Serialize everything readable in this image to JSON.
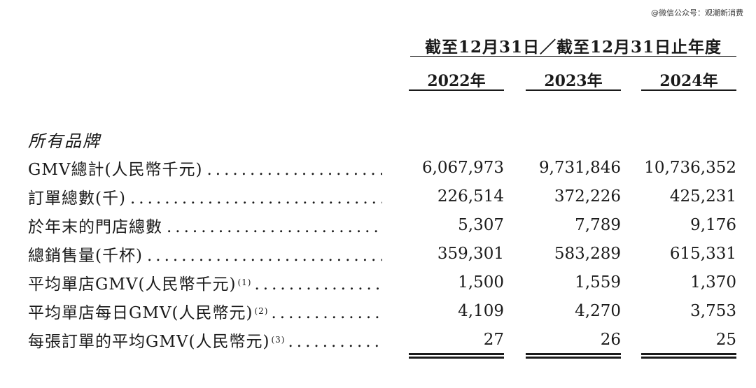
{
  "watermark": "@微信公众号：观潮新消费",
  "period_header": "截至12月31日／截至12月31日止年度",
  "years": [
    "2022年",
    "2023年",
    "2024年"
  ],
  "section_title": "所有品牌",
  "rows": [
    {
      "label": "GMV總計(人民幣千元)",
      "note": "",
      "values": [
        "6,067,973",
        "9,731,846",
        "10,736,352"
      ]
    },
    {
      "label": "訂單總數(千)",
      "note": "",
      "values": [
        "226,514",
        "372,226",
        "425,231"
      ]
    },
    {
      "label": "於年末的門店總數",
      "note": "",
      "values": [
        "5,307",
        "7,789",
        "9,176"
      ]
    },
    {
      "label": "總銷售量(千杯)",
      "note": "",
      "values": [
        "359,301",
        "583,289",
        "615,331"
      ]
    },
    {
      "label": "平均單店GMV(人民幣千元)",
      "note": "(1)",
      "values": [
        "1,500",
        "1,559",
        "1,370"
      ]
    },
    {
      "label": "平均單店每日GMV(人民幣元)",
      "note": "(2)",
      "values": [
        "4,109",
        "4,270",
        "3,753"
      ]
    },
    {
      "label": "每張訂單的平均GMV(人民幣元)",
      "note": "(3)",
      "values": [
        "27",
        "26",
        "25"
      ]
    }
  ]
}
